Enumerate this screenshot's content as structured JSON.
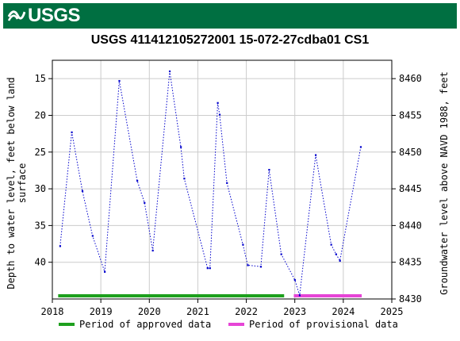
{
  "banner": {
    "logo_text": "USGS",
    "color": "#006f41"
  },
  "chart_data": {
    "type": "line",
    "title": "USGS 411412105272001 15-072-27cdba01 CS1",
    "ylabel_left": "Depth to water level, feet below land surface",
    "ylabel_right": "Groundwater level above NAVD 1988, feet",
    "xlim": [
      2018.0,
      2025.0
    ],
    "ylim_left": [
      12.5,
      45.0
    ],
    "ylim_right_inverted": [
      8462.5,
      8430.0
    ],
    "x_ticks": [
      "2018",
      "2019",
      "2020",
      "2021",
      "2022",
      "2023",
      "2024",
      "2025"
    ],
    "y_ticks_left": [
      "15",
      "20",
      "25",
      "30",
      "35",
      "40"
    ],
    "y_ticks_right": [
      "8460",
      "8455",
      "8450",
      "8445",
      "8440",
      "8435",
      "8430"
    ],
    "grid": true,
    "series": [
      {
        "name": "",
        "color": "#0000cc",
        "style": "dotted-with-markers",
        "points": [
          [
            2018.16,
            37.8
          ],
          [
            2018.4,
            22.3
          ],
          [
            2018.62,
            30.3
          ],
          [
            2018.83,
            36.4
          ],
          [
            2019.08,
            41.3
          ],
          [
            2019.38,
            15.3
          ],
          [
            2019.75,
            28.9
          ],
          [
            2019.9,
            31.9
          ],
          [
            2020.07,
            38.4
          ],
          [
            2020.42,
            14.0
          ],
          [
            2020.65,
            24.3
          ],
          [
            2020.72,
            28.6
          ],
          [
            2021.2,
            40.8
          ],
          [
            2021.25,
            40.8
          ],
          [
            2021.41,
            18.3
          ],
          [
            2021.45,
            19.9
          ],
          [
            2021.6,
            29.2
          ],
          [
            2021.93,
            37.6
          ],
          [
            2022.03,
            40.4
          ],
          [
            2022.3,
            40.6
          ],
          [
            2022.47,
            27.4
          ],
          [
            2022.72,
            38.9
          ],
          [
            2023.0,
            42.4
          ],
          [
            2023.1,
            44.5
          ],
          [
            2023.43,
            25.4
          ],
          [
            2023.75,
            37.6
          ],
          [
            2023.85,
            38.9
          ],
          [
            2023.93,
            39.8
          ],
          [
            2024.36,
            24.3
          ]
        ]
      }
    ],
    "periods": [
      {
        "label": "Period of approved data",
        "color": "#1ea01e",
        "start": 2018.12,
        "end": 2022.78
      },
      {
        "label": "Period of provisional data",
        "color": "#e645d6",
        "start": 2022.98,
        "end": 2024.38
      }
    ],
    "legend_position": "bottom"
  }
}
